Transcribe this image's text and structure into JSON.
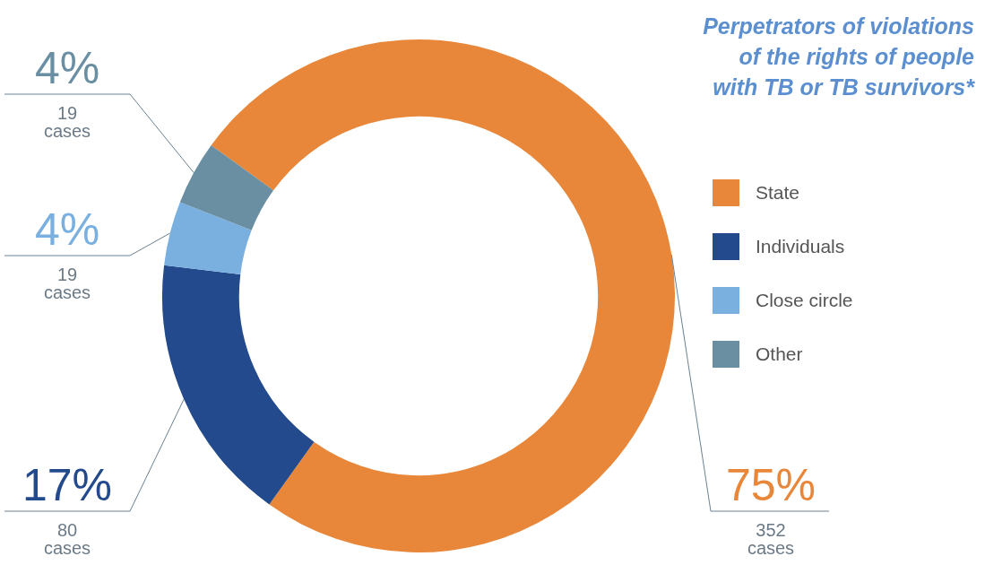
{
  "chart_data": {
    "type": "donut",
    "title": "Perpetrators of violations of the rights of people with TB or TB survivors*",
    "categories": [
      "State",
      "Individuals",
      "Close circle",
      "Other"
    ],
    "values": [
      352,
      80,
      19,
      19
    ],
    "colors": [
      "#e8873a",
      "#234a8c",
      "#7ab0e0",
      "#6a8fa3"
    ],
    "value_labels": [
      "75%\n352\ncases",
      "17%\n80\ncases",
      "4%\n19\ncases",
      "4%\n19\ncases"
    ],
    "legend": "right"
  }
}
